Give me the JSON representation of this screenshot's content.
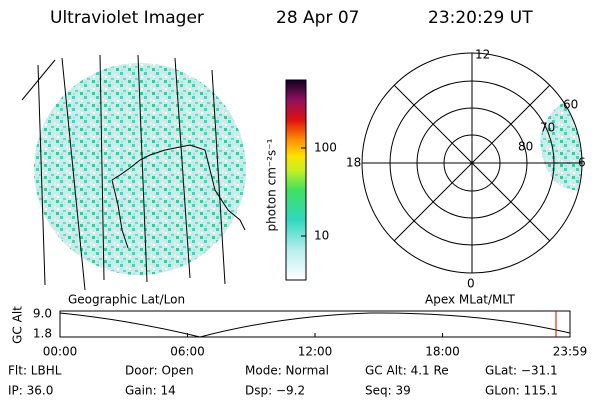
{
  "header": {
    "instrument": "Ultraviolet Imager",
    "date": "28 Apr 07",
    "time": "23:20:29 UT"
  },
  "colorbar": {
    "label": "photon cm⁻²s⁻¹",
    "ticks": [
      "100",
      "10"
    ]
  },
  "polar": {
    "labels": [
      "12",
      "18",
      "6",
      "0",
      "60",
      "70",
      "80"
    ]
  },
  "map_labels": {
    "left": "Geographic Lat/Lon",
    "right": "Apex MLat/MLT"
  },
  "altitude_plot": {
    "ylabel": "GC Alt",
    "yticks": [
      "9.0",
      "1.8"
    ],
    "xticks": [
      "00:00",
      "06:00",
      "12:00",
      "18:00",
      "23:59"
    ]
  },
  "footer": [
    [
      "Flt: LBHL",
      "Door: Open",
      "Mode: Normal",
      "GC Alt: 4.1 Re",
      "GLat: −31.1"
    ],
    [
      "IP: 36.0",
      "Gain: 14",
      "Dsp:   −9.2",
      "Seq: 39",
      "GLon: 115.1"
    ]
  ]
}
